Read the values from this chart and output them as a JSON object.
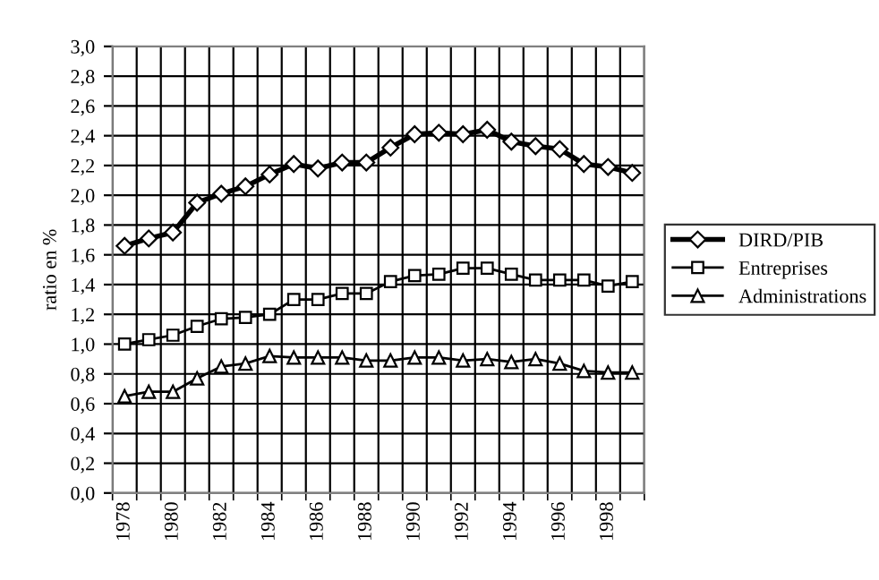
{
  "chart_data": {
    "type": "line",
    "ylabel": "ratio en %",
    "categories": [
      "1978",
      null,
      "1980",
      null,
      "1982",
      null,
      "1984",
      null,
      "1986",
      null,
      "1988",
      null,
      "1990",
      null,
      "1992",
      null,
      "1994",
      null,
      "1996",
      null,
      "1998",
      null
    ],
    "series": [
      {
        "name": "DIRD/PIB",
        "color": "#000000",
        "marker": "diamond",
        "values": [
          1.66,
          1.71,
          1.75,
          1.95,
          2.01,
          2.06,
          2.14,
          2.21,
          2.18,
          2.22,
          2.22,
          2.32,
          2.41,
          2.42,
          2.41,
          2.44,
          2.36,
          2.33,
          2.31,
          2.21,
          2.19,
          2.15
        ]
      },
      {
        "name": "Entreprises",
        "color": "#000000",
        "marker": "square",
        "values": [
          1.0,
          1.03,
          1.06,
          1.12,
          1.17,
          1.18,
          1.2,
          1.3,
          1.3,
          1.34,
          1.34,
          1.42,
          1.46,
          1.47,
          1.51,
          1.51,
          1.47,
          1.43,
          1.43,
          1.43,
          1.39,
          1.42
        ]
      },
      {
        "name": "Administrations",
        "color": "#000000",
        "marker": "triangle",
        "values": [
          0.65,
          0.68,
          0.68,
          0.77,
          0.85,
          0.87,
          0.92,
          0.91,
          0.91,
          0.91,
          0.89,
          0.89,
          0.91,
          0.91,
          0.89,
          0.9,
          0.88,
          0.9,
          0.87,
          0.82,
          0.81,
          0.81
        ]
      }
    ],
    "ylim": [
      0,
      3
    ],
    "yticks": [
      {
        "value": 0,
        "label": "0,0"
      },
      {
        "value": 0.2,
        "label": "0,2"
      },
      {
        "value": 0.4,
        "label": "0,4"
      },
      {
        "value": 0.6,
        "label": "0,6"
      },
      {
        "value": 0.8,
        "label": "0,8"
      },
      {
        "value": 1.0,
        "label": "1,0"
      },
      {
        "value": 1.2,
        "label": "1,2"
      },
      {
        "value": 1.4,
        "label": "1,4"
      },
      {
        "value": 1.6,
        "label": "1,6"
      },
      {
        "value": 1.8,
        "label": "1,8"
      },
      {
        "value": 2.0,
        "label": "2,0"
      },
      {
        "value": 2.2,
        "label": "2,2"
      },
      {
        "value": 2.4,
        "label": "2,4"
      },
      {
        "value": 2.6,
        "label": "2,6"
      },
      {
        "value": 2.8,
        "label": "2,8"
      },
      {
        "value": 3.0,
        "label": "3,0"
      }
    ],
    "grid": true,
    "legend": "right",
    "line_style": "solid"
  }
}
